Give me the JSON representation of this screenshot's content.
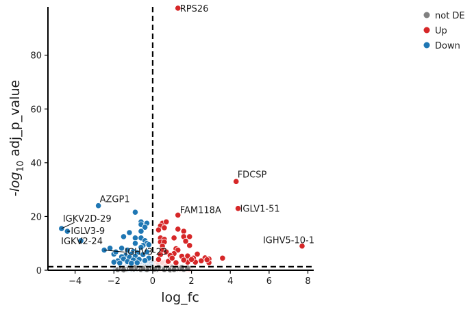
{
  "chart_data": {
    "type": "scatter",
    "title": "",
    "xlabel": "log_fc",
    "ylabel_prefix": "-log",
    "ylabel_sub": "10",
    "ylabel_suffix": " adj_p_value",
    "xlim": [
      -5.4,
      8.3
    ],
    "ylim": [
      0,
      98
    ],
    "xticks": [
      -4,
      -2,
      0,
      2,
      4,
      6,
      8
    ],
    "xtick_labels": [
      "−4",
      "−2",
      "0",
      "2",
      "4",
      "6",
      "8"
    ],
    "yticks": [
      0,
      20,
      40,
      60,
      80
    ],
    "ytick_labels": [
      "0",
      "20",
      "40",
      "60",
      "80"
    ],
    "grid": false,
    "threshold_lines": {
      "vertical_x": 0,
      "horizontal_y": 1.3
    },
    "legend_position": "top-right",
    "series": [
      {
        "name": "not DE",
        "color": "#808080",
        "points": [
          [
            -1.8,
            0.2
          ],
          [
            -1.6,
            0.5
          ],
          [
            -1.4,
            0.3
          ],
          [
            -1.2,
            0.8
          ],
          [
            -1.0,
            0.4
          ],
          [
            -0.8,
            0.6
          ],
          [
            -0.6,
            0.2
          ],
          [
            -0.4,
            0.9
          ],
          [
            -0.2,
            0.5
          ],
          [
            0.2,
            0.3
          ],
          [
            0.4,
            0.7
          ],
          [
            0.6,
            0.2
          ],
          [
            0.8,
            0.5
          ],
          [
            1.0,
            0.9
          ],
          [
            1.2,
            0.4
          ],
          [
            1.4,
            0.6
          ],
          [
            1.6,
            0.3
          ],
          [
            1.8,
            0.8
          ],
          [
            -1.5,
            0.1
          ],
          [
            -0.9,
            1.0
          ],
          [
            -0.3,
            0.2
          ],
          [
            0.3,
            1.1
          ],
          [
            0.9,
            0.1
          ],
          [
            1.5,
            1.0
          ],
          [
            -1.1,
            0.6
          ],
          [
            0.1,
            0.4
          ],
          [
            1.1,
            0.2
          ],
          [
            -0.5,
            0.7
          ]
        ]
      },
      {
        "name": "Up",
        "color": "#d62728",
        "points": [
          [
            1.3,
            97.5
          ],
          [
            4.3,
            33
          ],
          [
            4.4,
            23
          ],
          [
            7.7,
            9
          ],
          [
            1.3,
            20.5
          ],
          [
            0.5,
            17.5
          ],
          [
            0.7,
            18
          ],
          [
            0.4,
            16.5
          ],
          [
            0.3,
            15
          ],
          [
            0.6,
            15.8
          ],
          [
            1.3,
            15.3
          ],
          [
            1.6,
            14.5
          ],
          [
            1.6,
            12.5
          ],
          [
            1.9,
            12.5
          ],
          [
            1.1,
            12
          ],
          [
            0.4,
            12
          ],
          [
            0.6,
            11.5
          ],
          [
            1.7,
            10.8
          ],
          [
            0.4,
            10.5
          ],
          [
            0.6,
            10.5
          ],
          [
            1.9,
            9.2
          ],
          [
            0.5,
            9
          ],
          [
            1.2,
            8
          ],
          [
            1.3,
            7.5
          ],
          [
            2.3,
            6
          ],
          [
            1.1,
            6.2
          ],
          [
            0.5,
            7.5
          ],
          [
            0.7,
            6.8
          ],
          [
            0.4,
            5.8
          ],
          [
            0.9,
            5.5
          ],
          [
            1.5,
            5.2
          ],
          [
            1.8,
            5.3
          ],
          [
            2.1,
            4.5
          ],
          [
            2.7,
            4.6
          ],
          [
            2.9,
            4.2
          ],
          [
            3.6,
            4.5
          ],
          [
            2.5,
            3.5
          ],
          [
            1.8,
            3.0
          ],
          [
            2.2,
            3.0
          ],
          [
            2.9,
            2.8
          ],
          [
            2.8,
            3.9
          ],
          [
            0.8,
            3.3
          ],
          [
            1.2,
            2.8
          ],
          [
            1.6,
            3.8
          ],
          [
            2.0,
            4.0
          ],
          [
            0.3,
            4.0
          ],
          [
            1.0,
            4.5
          ]
        ]
      },
      {
        "name": "Down",
        "color": "#1f77b4",
        "points": [
          [
            -2.8,
            24
          ],
          [
            -4.7,
            15.5
          ],
          [
            -4.4,
            14.5
          ],
          [
            -3.7,
            11
          ],
          [
            -2.5,
            7.5
          ],
          [
            -2.2,
            8.2
          ],
          [
            -2.0,
            6
          ],
          [
            -1.9,
            6.8
          ],
          [
            -0.9,
            21.6
          ],
          [
            -0.6,
            18
          ],
          [
            -0.6,
            17
          ],
          [
            -0.3,
            17.5
          ],
          [
            -0.4,
            16
          ],
          [
            -0.6,
            14.5
          ],
          [
            -1.2,
            14
          ],
          [
            -1.5,
            12.5
          ],
          [
            -0.9,
            12
          ],
          [
            -0.6,
            12
          ],
          [
            -0.4,
            11
          ],
          [
            -0.3,
            10
          ],
          [
            -0.9,
            10
          ],
          [
            -0.2,
            9.5
          ],
          [
            -0.5,
            9.2
          ],
          [
            -1.6,
            8.2
          ],
          [
            -1.3,
            7.5
          ],
          [
            -1.0,
            7.0
          ],
          [
            -0.6,
            8.5
          ],
          [
            -0.8,
            6.5
          ],
          [
            -1.1,
            6.0
          ],
          [
            -1.4,
            5.5
          ],
          [
            -1.6,
            5.0
          ],
          [
            -1.2,
            4.8
          ],
          [
            -0.9,
            5.2
          ],
          [
            -0.5,
            5.8
          ],
          [
            -0.3,
            6.8
          ],
          [
            -0.2,
            4.5
          ],
          [
            -0.7,
            4.0
          ],
          [
            -1.0,
            3.8
          ],
          [
            -1.5,
            4.2
          ],
          [
            -1.8,
            3.5
          ],
          [
            -2.0,
            3.0
          ],
          [
            -1.3,
            3.2
          ],
          [
            -0.4,
            3.6
          ],
          [
            -1.7,
            2.7
          ],
          [
            -1.1,
            2.6
          ],
          [
            -0.8,
            2.8
          ]
        ]
      }
    ],
    "annotations": [
      {
        "text": "RPS26",
        "x": 1.3,
        "y": 97.5,
        "dx": 3,
        "dy": 5,
        "anchor": "start",
        "leader": false
      },
      {
        "text": "FDCSP",
        "x": 4.3,
        "y": 33,
        "dx": 2,
        "dy": -6,
        "anchor": "start",
        "leader": false
      },
      {
        "text": "IGLV1-51",
        "x": 4.4,
        "y": 23,
        "dx": 3,
        "dy": 5,
        "anchor": "start",
        "leader": false
      },
      {
        "text": "IGHV5-10-1",
        "x": 7.7,
        "y": 9,
        "dx": 18,
        "dy": -4,
        "anchor": "end",
        "leader": false
      },
      {
        "text": "FAM118A",
        "x": 1.3,
        "y": 20.5,
        "dx": 3,
        "dy": -3,
        "anchor": "start",
        "leader": false
      },
      {
        "text": "AZGP1",
        "x": -2.8,
        "y": 24,
        "dx": 2,
        "dy": -5,
        "anchor": "start",
        "leader": false
      },
      {
        "text": "IGKV2D-29",
        "x": -4.7,
        "y": 15.5,
        "dx": 2,
        "dy": -10,
        "anchor": "start",
        "leader": true,
        "lx": 19,
        "ly": -9
      },
      {
        "text": "IGLV3-9",
        "x": -4.4,
        "y": 14.5,
        "dx": 5,
        "dy": 4,
        "anchor": "start",
        "leader": true,
        "lx": 4,
        "ly": 0
      },
      {
        "text": "IGKV2-24",
        "x": -3.7,
        "y": 11,
        "dx": -29,
        "dy": 5,
        "anchor": "start",
        "leader": true,
        "lx": 0,
        "ly": 5
      },
      {
        "text": "IGHV3-23",
        "x": -2.5,
        "y": 7.5,
        "dx": 30,
        "dy": 7,
        "anchor": "start",
        "leader": true,
        "lx": 30,
        "ly": 3
      }
    ]
  }
}
